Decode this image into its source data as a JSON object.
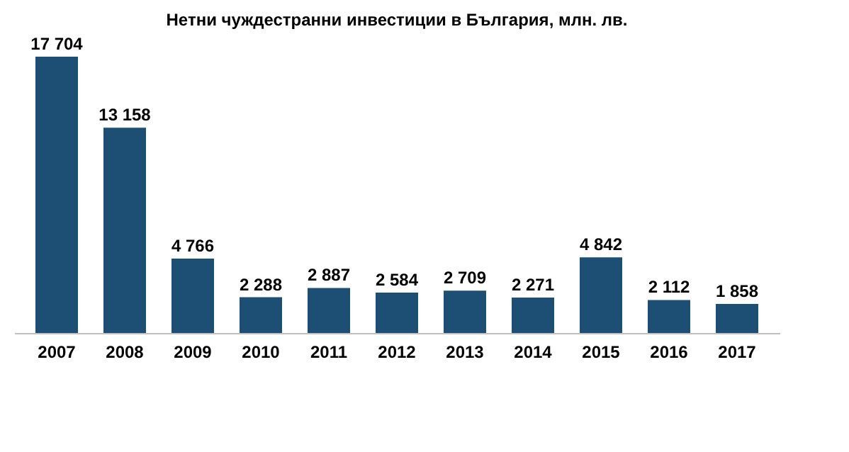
{
  "chart_data": {
    "type": "bar",
    "title": "Нетни чуждестранни инвестиции в България, млн. лв.",
    "categories": [
      "2007",
      "2008",
      "2009",
      "2010",
      "2011",
      "2012",
      "2013",
      "2014",
      "2015",
      "2016",
      "2017"
    ],
    "values": [
      17704,
      13158,
      4766,
      2288,
      2887,
      2584,
      2709,
      2271,
      4842,
      2112,
      1858
    ],
    "value_labels": [
      "17 704",
      "13 158",
      "4 766",
      "2 288",
      "2 887",
      "2 584",
      "2 709",
      "2 271",
      "4 842",
      "2 112",
      "1 858"
    ],
    "color": "#1d4e74",
    "grid": false,
    "tick_labels": "x"
  }
}
